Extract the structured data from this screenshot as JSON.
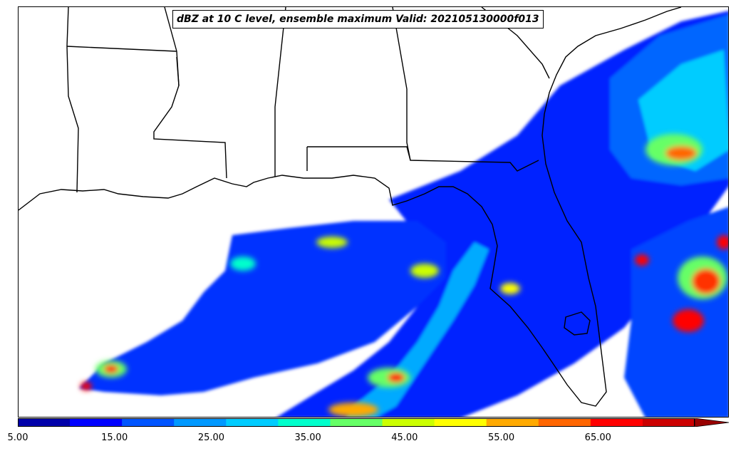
{
  "title": "dBZ at 10 C level, ensemble maximum Valid: 202105130000f013",
  "colorbar": {
    "colors": [
      "#0000aa",
      "#0000ff",
      "#0055ff",
      "#0099ff",
      "#00ccff",
      "#00ffcc",
      "#66ff66",
      "#ccff00",
      "#ffff00",
      "#ffaa00",
      "#ff6600",
      "#ff0000",
      "#cc0000",
      "#990000"
    ],
    "min": 5,
    "max": 75,
    "ticks": [
      "5.00",
      "15.00",
      "25.00",
      "35.00",
      "45.00",
      "55.00",
      "65.00"
    ],
    "extend": "max"
  },
  "legend_position": "bottom"
}
